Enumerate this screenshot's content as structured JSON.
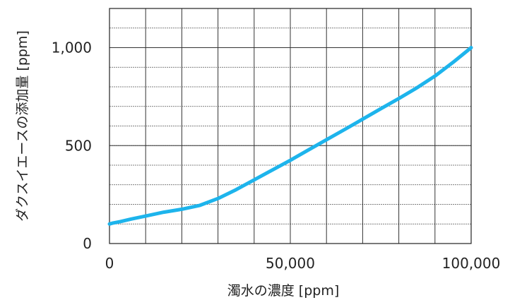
{
  "chart_data": {
    "type": "line",
    "title": "",
    "xlabel": "濁水の濃度 [ppm]",
    "ylabel": "ダクスイエースの添加量 [ppm]",
    "xlim": [
      0,
      100000
    ],
    "ylim": [
      0,
      1200
    ],
    "x_ticks": [
      {
        "value": 0,
        "label": "0"
      },
      {
        "value": 50000,
        "label": "50,000"
      },
      {
        "value": 100000,
        "label": "100,000"
      }
    ],
    "y_ticks": [
      {
        "value": 0,
        "label": "0"
      },
      {
        "value": 500,
        "label": "500"
      },
      {
        "value": 1000,
        "label": "1,000"
      }
    ],
    "grid": true,
    "x_grid_step": 10000,
    "y_grid_step": 100,
    "series": [
      {
        "color": "#1db4ec",
        "x": [
          0,
          1000,
          3000,
          6000,
          10000,
          15000,
          20000,
          25000,
          30000,
          35000,
          40000,
          45000,
          50000,
          55000,
          60000,
          65000,
          70000,
          75000,
          80000,
          85000,
          90000,
          95000,
          100000
        ],
        "y": [
          100,
          105,
          112,
          125,
          140,
          160,
          175,
          195,
          230,
          275,
          325,
          375,
          425,
          478,
          530,
          582,
          635,
          688,
          740,
          795,
          855,
          925,
          1000
        ]
      }
    ]
  }
}
